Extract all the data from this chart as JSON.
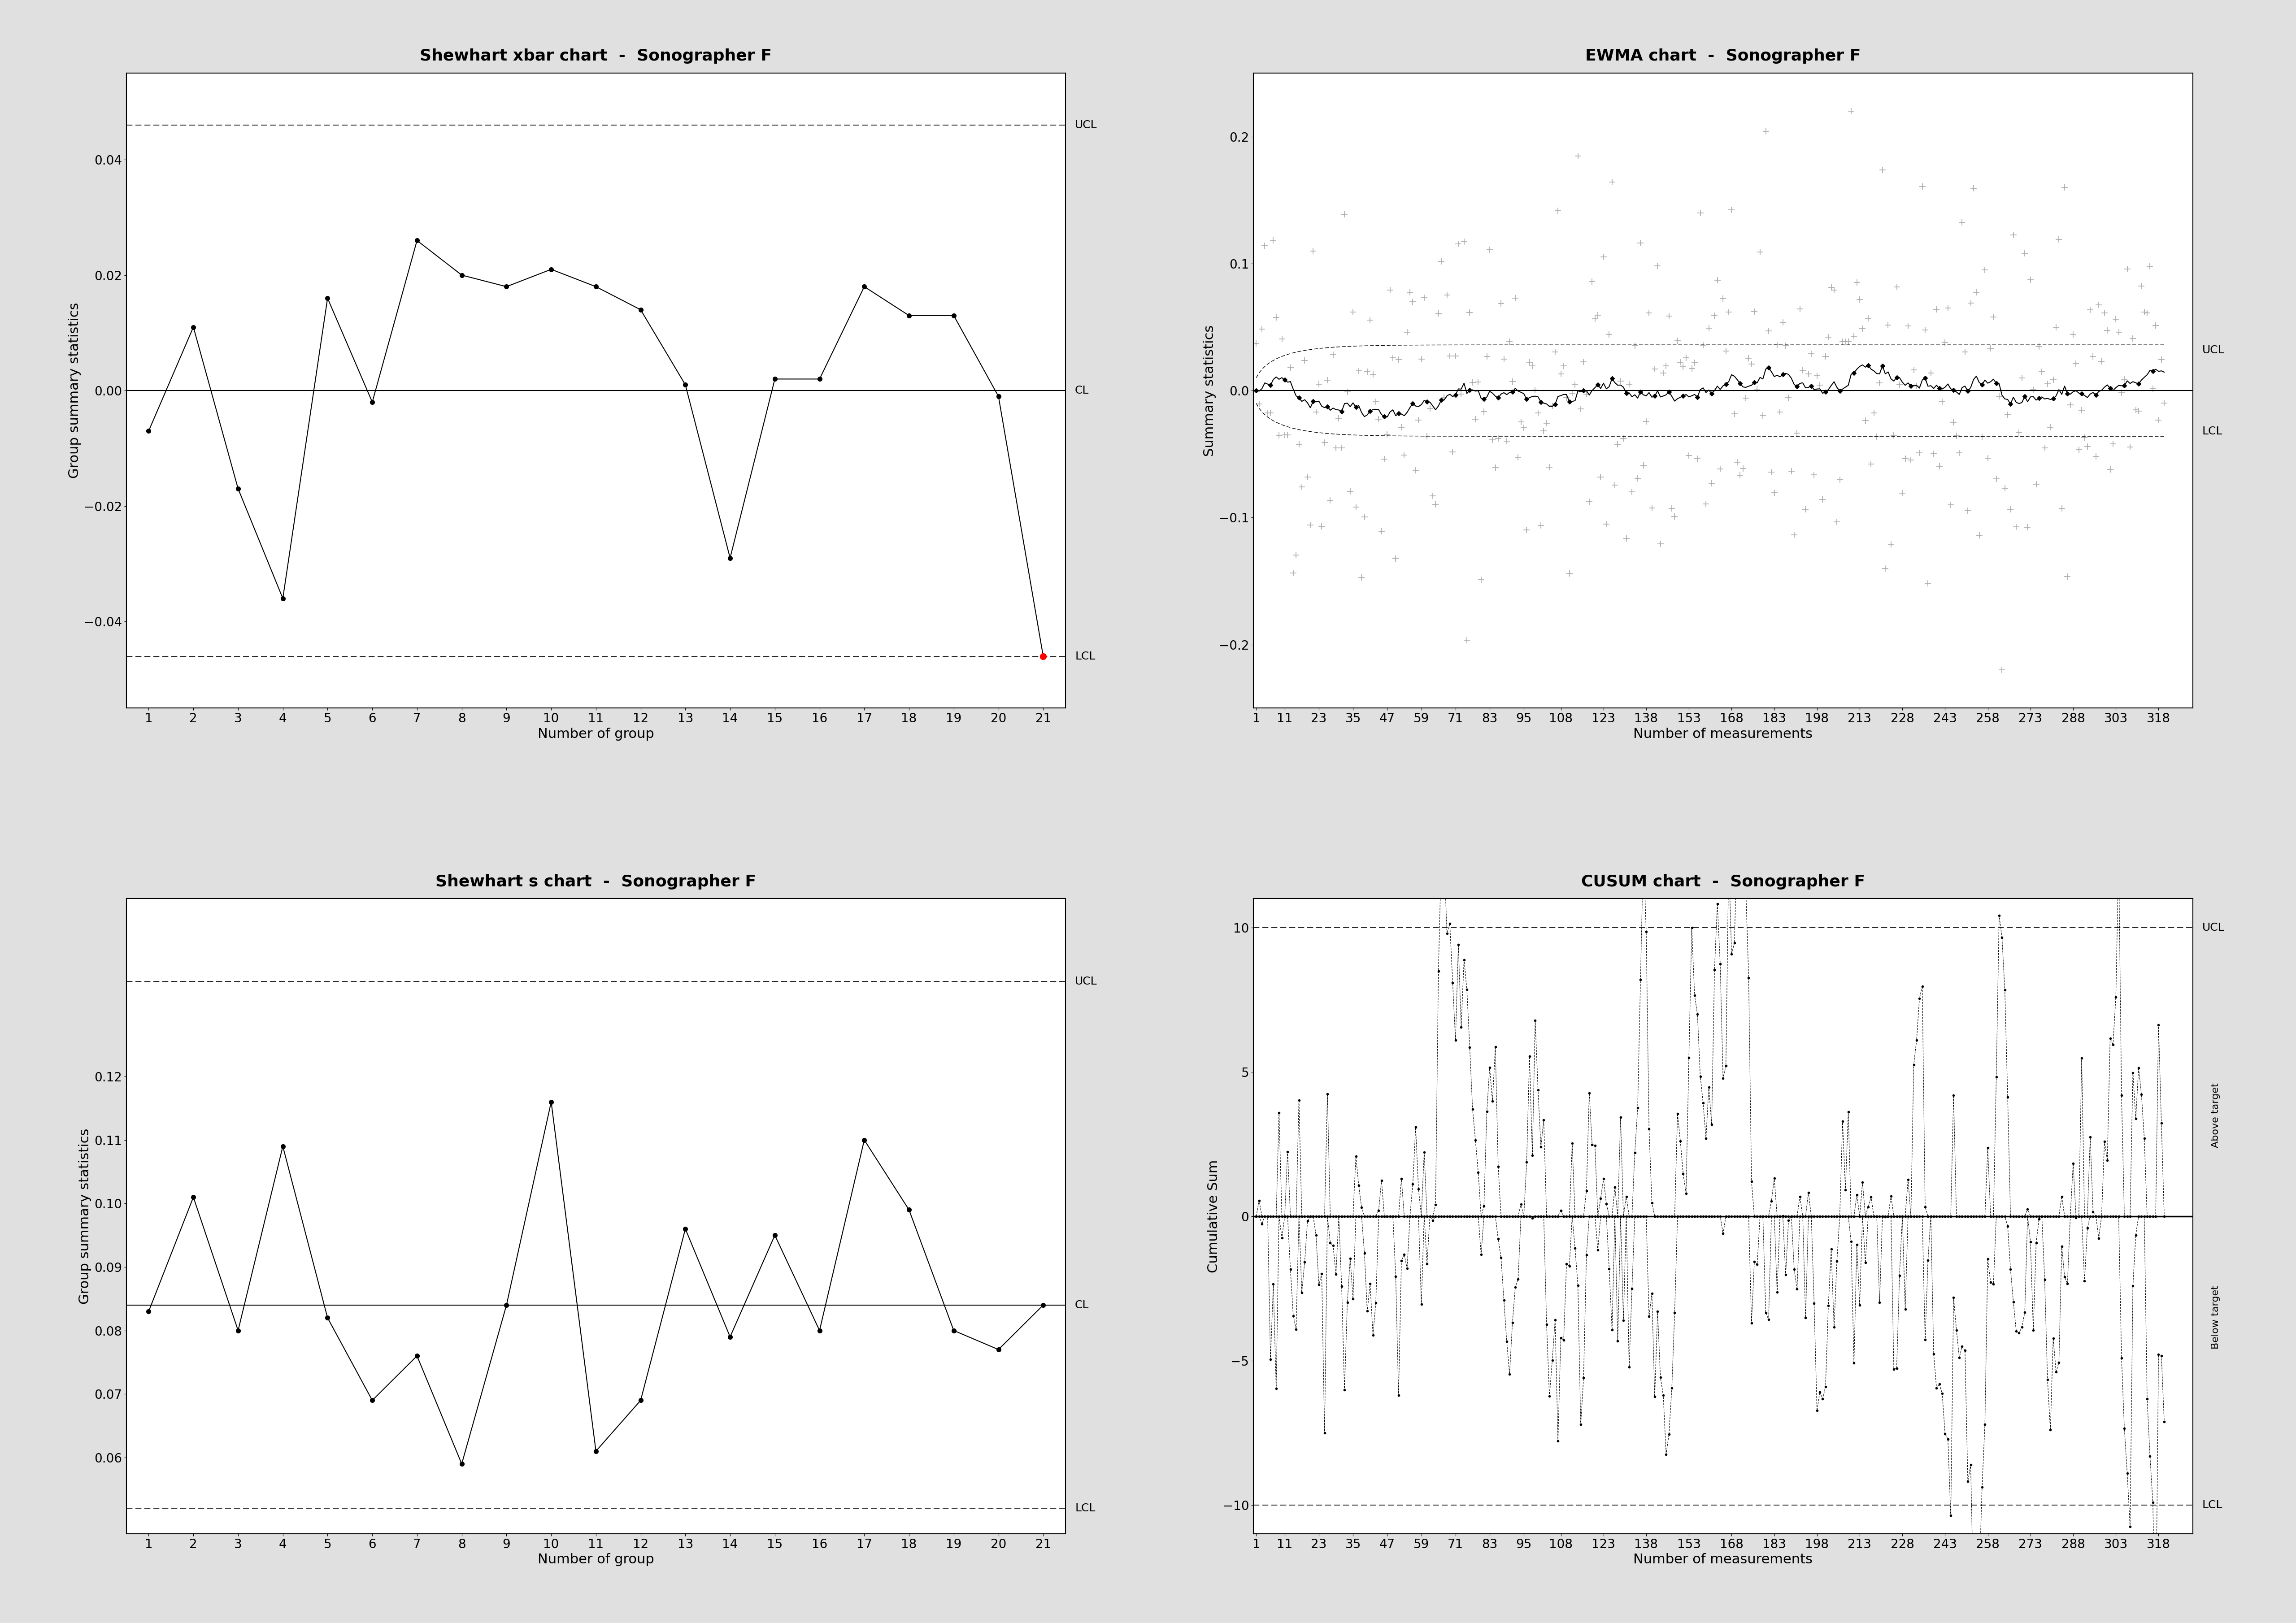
{
  "bg_color": "#e0e0e0",
  "plot_bg_color": "#ffffff",
  "xbar_title": "Shewhart xbar chart  -  Sonographer F",
  "xbar_ylabel": "Group summary statistics",
  "xbar_xlabel": "Number of group",
  "xbar_cl": 0.0,
  "xbar_ucl": 0.046,
  "xbar_lcl": -0.046,
  "xbar_ylim": [
    -0.055,
    0.055
  ],
  "xbar_yticks": [
    -0.04,
    -0.02,
    0.0,
    0.02,
    0.04
  ],
  "xbar_xticks": [
    1,
    2,
    3,
    4,
    5,
    6,
    7,
    8,
    9,
    10,
    11,
    12,
    13,
    14,
    15,
    16,
    17,
    18,
    19,
    20,
    21
  ],
  "xbar_data_x": [
    1,
    2,
    3,
    4,
    5,
    6,
    7,
    8,
    9,
    10,
    11,
    12,
    13,
    14,
    15,
    16,
    17,
    18,
    19,
    20,
    21
  ],
  "xbar_data_y": [
    -0.007,
    0.011,
    -0.017,
    -0.036,
    0.016,
    -0.002,
    0.026,
    0.02,
    0.018,
    0.021,
    0.018,
    0.014,
    0.001,
    -0.029,
    0.002,
    0.002,
    0.018,
    0.013,
    0.013,
    -0.001,
    -0.046
  ],
  "xbar_outlier_idx": [
    20
  ],
  "xbar_outlier_color": "red",
  "s_title": "Shewhart s chart  -  Sonographer F",
  "s_ylabel": "Group summary statistics",
  "s_xlabel": "Number of group",
  "s_cl": 0.084,
  "s_ucl": 0.135,
  "s_lcl": 0.052,
  "s_ylim": [
    0.048,
    0.148
  ],
  "s_yticks": [
    0.06,
    0.07,
    0.08,
    0.09,
    0.1,
    0.11,
    0.12
  ],
  "s_xticks": [
    1,
    2,
    3,
    4,
    5,
    6,
    7,
    8,
    9,
    10,
    11,
    12,
    13,
    14,
    15,
    16,
    17,
    18,
    19,
    20,
    21
  ],
  "s_data_x": [
    1,
    2,
    3,
    4,
    5,
    6,
    7,
    8,
    9,
    10,
    11,
    12,
    13,
    14,
    15,
    16,
    17,
    18,
    19,
    20,
    21
  ],
  "s_data_y": [
    0.083,
    0.101,
    0.08,
    0.109,
    0.082,
    0.069,
    0.076,
    0.059,
    0.084,
    0.116,
    0.061,
    0.069,
    0.096,
    0.079,
    0.095,
    0.08,
    0.11,
    0.099,
    0.08,
    0.077,
    0.084
  ],
  "ewma_title": "EWMA chart  -  Sonographer F",
  "ewma_ylabel": "Summary statistics",
  "ewma_xlabel": "Number of measurements",
  "ewma_ylim": [
    -0.25,
    0.25
  ],
  "ewma_xlim": [
    0,
    330
  ],
  "ewma_yticks": [
    -0.2,
    -0.1,
    0.0,
    0.1,
    0.2
  ],
  "ewma_cl": 0.0,
  "ewma_ucl_flat": 0.032,
  "ewma_lcl_flat": -0.032,
  "ewma_xtick_labels": [
    "1",
    "11",
    "23",
    "35",
    "47",
    "59",
    "71",
    "83",
    "95",
    "108",
    "123",
    "138",
    "153",
    "168",
    "183",
    "198",
    "213",
    "228",
    "243",
    "258",
    "273",
    "288",
    "303",
    "318"
  ],
  "ewma_xtick_pos": [
    1,
    11,
    23,
    35,
    47,
    59,
    71,
    83,
    95,
    108,
    123,
    138,
    153,
    168,
    183,
    198,
    213,
    228,
    243,
    258,
    273,
    288,
    303,
    318
  ],
  "cusum_title": "CUSUM chart  -  Sonographer F",
  "cusum_ylabel": "Cumulative Sum",
  "cusum_xlabel": "Number of measurements",
  "cusum_ylim": [
    -11,
    11
  ],
  "cusum_xlim": [
    0,
    330
  ],
  "cusum_yticks": [
    -10,
    -5,
    0,
    5,
    10
  ],
  "cusum_cl": 0.0,
  "cusum_ucl": 10.0,
  "cusum_lcl": -10.0,
  "cusum_above_label": "Above target",
  "cusum_below_label": "Below target",
  "cusum_xtick_labels": [
    "1",
    "11",
    "23",
    "35",
    "47",
    "59",
    "71",
    "83",
    "95",
    "108",
    "123",
    "138",
    "153",
    "168",
    "183",
    "198",
    "213",
    "228",
    "243",
    "258",
    "273",
    "288",
    "303",
    "318"
  ],
  "cusum_xtick_pos": [
    1,
    11,
    23,
    35,
    47,
    59,
    71,
    83,
    95,
    108,
    123,
    138,
    153,
    168,
    183,
    198,
    213,
    228,
    243,
    258,
    273,
    288,
    303,
    318
  ]
}
